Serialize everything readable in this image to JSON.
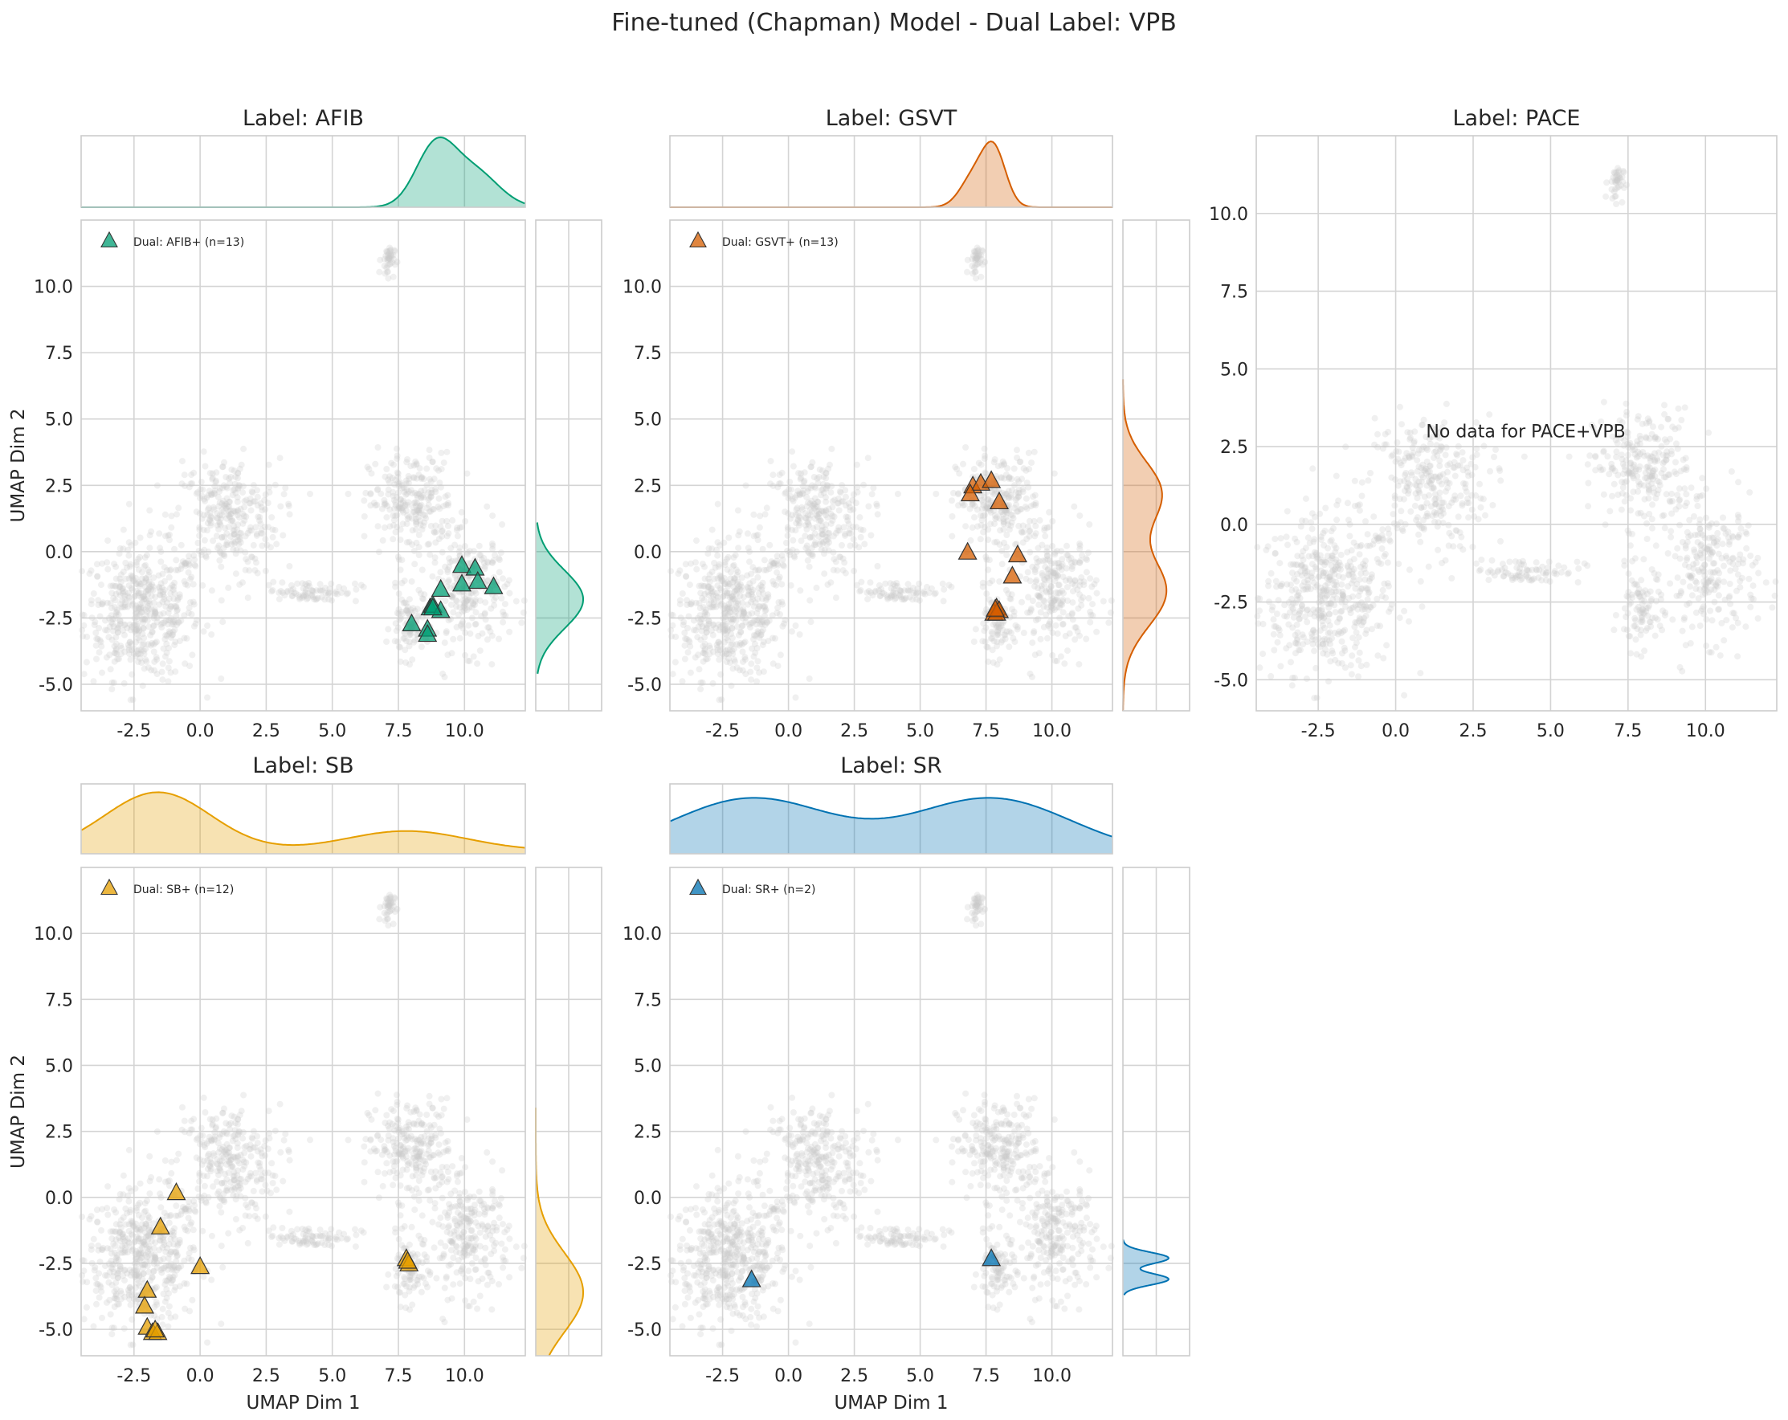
{
  "chart_data": {
    "type": "scatter",
    "title": "Fine-tuned (Chapman) Model - Dual Label: VPB",
    "xlabel": "UMAP Dim 1",
    "ylabel": "UMAP Dim 2",
    "xlim": [
      -4.5,
      12.3
    ],
    "ylim": [
      -6.0,
      12.5
    ],
    "xticks": [
      -2.5,
      0.0,
      2.5,
      5.0,
      7.5,
      10.0
    ],
    "yticks": [
      -5.0,
      -2.5,
      0.0,
      2.5,
      5.0,
      7.5,
      10.0
    ],
    "grid": true,
    "background": {
      "color": "#c8c8c8",
      "description_clusters": [
        {
          "cx": -2.2,
          "cy": -2.3,
          "rx": 2.2,
          "ry": 2.5,
          "n": 500
        },
        {
          "cx": 1.0,
          "cy": 1.3,
          "rx": 2.0,
          "ry": 2.2,
          "n": 300
        },
        {
          "cx": 8.0,
          "cy": 1.8,
          "rx": 1.6,
          "ry": 1.9,
          "n": 250
        },
        {
          "cx": 10.2,
          "cy": -1.5,
          "rx": 1.5,
          "ry": 2.2,
          "n": 250
        },
        {
          "cx": 7.9,
          "cy": -2.8,
          "rx": 0.7,
          "ry": 1.3,
          "n": 90
        },
        {
          "cx": 4.2,
          "cy": -1.5,
          "rx": 1.8,
          "ry": 0.4,
          "n": 80
        },
        {
          "cx": 7.1,
          "cy": 11.0,
          "rx": 0.25,
          "ry": 0.6,
          "n": 40
        }
      ]
    },
    "panels": [
      {
        "label": "AFIB",
        "title": "Label: AFIB",
        "color": "#009e73",
        "legend": "Dual: AFIB+ (n=13)",
        "show_ylabel": true,
        "show_xlabel": false,
        "points": [
          [
            8.0,
            -2.7
          ],
          [
            8.6,
            -2.9
          ],
          [
            8.6,
            -3.1
          ],
          [
            8.7,
            -2.1
          ],
          [
            8.8,
            -2.0
          ],
          [
            9.1,
            -2.2
          ],
          [
            9.1,
            -1.4
          ],
          [
            9.9,
            -1.2
          ],
          [
            9.9,
            -0.5
          ],
          [
            10.4,
            -0.6
          ],
          [
            10.5,
            -1.1
          ],
          [
            11.1,
            -1.3
          ],
          [
            8.8,
            -2.1
          ]
        ],
        "kde_x": {
          "mean": 9.3,
          "sd": 1.1,
          "xrange": [
            -4.5,
            12.3
          ]
        },
        "kde_y": {
          "mean": -1.8,
          "sd": 1.1,
          "yrange": [
            -4.6,
            1.1
          ]
        }
      },
      {
        "label": "GSVT",
        "title": "Label: GSVT",
        "color": "#d55e00",
        "legend": "Dual: GSVT+ (n=13)",
        "show_ylabel": false,
        "show_xlabel": false,
        "points": [
          [
            7.0,
            2.5
          ],
          [
            7.3,
            2.6
          ],
          [
            7.7,
            2.7
          ],
          [
            6.9,
            2.2
          ],
          [
            8.0,
            1.9
          ],
          [
            6.8,
            0.0
          ],
          [
            8.7,
            -0.1
          ],
          [
            8.5,
            -0.9
          ],
          [
            7.9,
            -2.1
          ],
          [
            7.8,
            -2.3
          ],
          [
            8.0,
            -2.2
          ],
          [
            7.9,
            -2.3
          ],
          [
            7.85,
            -2.15
          ]
        ],
        "kde_x": {
          "mean": 7.7,
          "sd": 0.7,
          "xrange": [
            -4.5,
            12.3
          ]
        },
        "kde_y": {
          "mean": 0.2,
          "sd": 2.0,
          "yrange": [
            -6.0,
            6.5
          ]
        }
      },
      {
        "label": "PACE",
        "title": "Label: PACE",
        "color": "#999999",
        "legend": "",
        "note": "No data for PACE+VPB",
        "show_ylabel": false,
        "show_xlabel": false,
        "points": []
      },
      {
        "label": "SB",
        "title": "Label: SB",
        "color": "#e69f00",
        "legend": "Dual: SB+ (n=12)",
        "show_ylabel": true,
        "show_xlabel": true,
        "points": [
          [
            -0.9,
            0.2
          ],
          [
            -1.5,
            -1.1
          ],
          [
            0.0,
            -2.6
          ],
          [
            -2.0,
            -3.5
          ],
          [
            -2.1,
            -4.1
          ],
          [
            -2.0,
            -4.9
          ],
          [
            -1.8,
            -5.1
          ],
          [
            -1.6,
            -5.1
          ],
          [
            -1.7,
            -5.0
          ],
          [
            7.8,
            -2.3
          ],
          [
            7.9,
            -2.5
          ],
          [
            7.85,
            -2.4
          ]
        ],
        "kde_x": {
          "mean": 0.0,
          "sd": 3.5,
          "xrange": [
            -4.5,
            12.3
          ]
        },
        "kde_y": {
          "mean": -3.5,
          "sd": 1.5,
          "yrange": [
            -6.0,
            3.4
          ]
        }
      },
      {
        "label": "SR",
        "title": "Label: SR",
        "color": "#0072b2",
        "legend": "Dual: SR+ (n=2)",
        "show_ylabel": false,
        "show_xlabel": true,
        "points": [
          [
            -1.4,
            -3.1
          ],
          [
            7.7,
            -2.3
          ]
        ],
        "kde_x": {
          "mean": 3.2,
          "sd": 4.5,
          "xrange": [
            -4.5,
            12.3
          ]
        },
        "kde_y": {
          "mean": -2.7,
          "sd": 0.35,
          "yrange": [
            -3.7,
            -1.6
          ]
        }
      }
    ]
  }
}
